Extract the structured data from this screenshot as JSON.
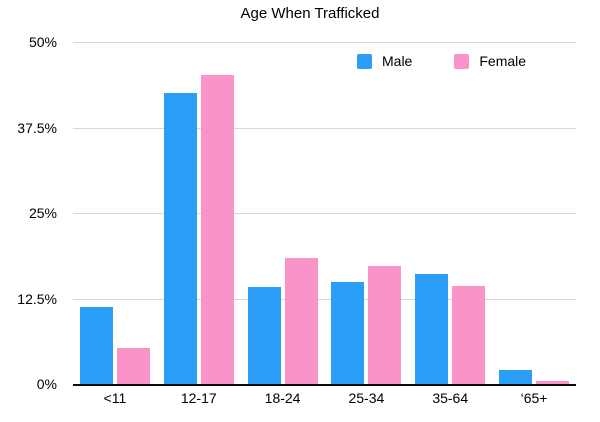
{
  "chart_data": {
    "type": "bar",
    "title": "Age When Trafficked",
    "categories": [
      "<11",
      "12-17",
      "18-24",
      "25-34",
      "35-64",
      "‘65+"
    ],
    "series": [
      {
        "name": "Male",
        "color": "#2B9FF7",
        "values": [
          11.3,
          42.5,
          14.2,
          14.9,
          16.1,
          2.0
        ]
      },
      {
        "name": "Female",
        "color": "#FA93C7",
        "values": [
          5.3,
          45.2,
          18.4,
          17.2,
          14.3,
          0.4
        ]
      }
    ],
    "xlabel": "",
    "ylabel": "",
    "ylim": [
      0,
      50
    ],
    "y_ticks": [
      {
        "value": 50,
        "label": "50%"
      },
      {
        "value": 37.5,
        "label": "37.5%"
      },
      {
        "value": 25,
        "label": "25%"
      },
      {
        "value": 12.5,
        "label": "12.5%"
      },
      {
        "value": 0,
        "label": "0%"
      }
    ],
    "grid": true,
    "legend_position": "top-right"
  },
  "colors": {
    "male": "#2B9FF7",
    "female": "#FA93C7",
    "gridline": "#D8D8D8",
    "axis": "#0D0D0D",
    "text": "#000000",
    "background": "#FFFFFF"
  }
}
